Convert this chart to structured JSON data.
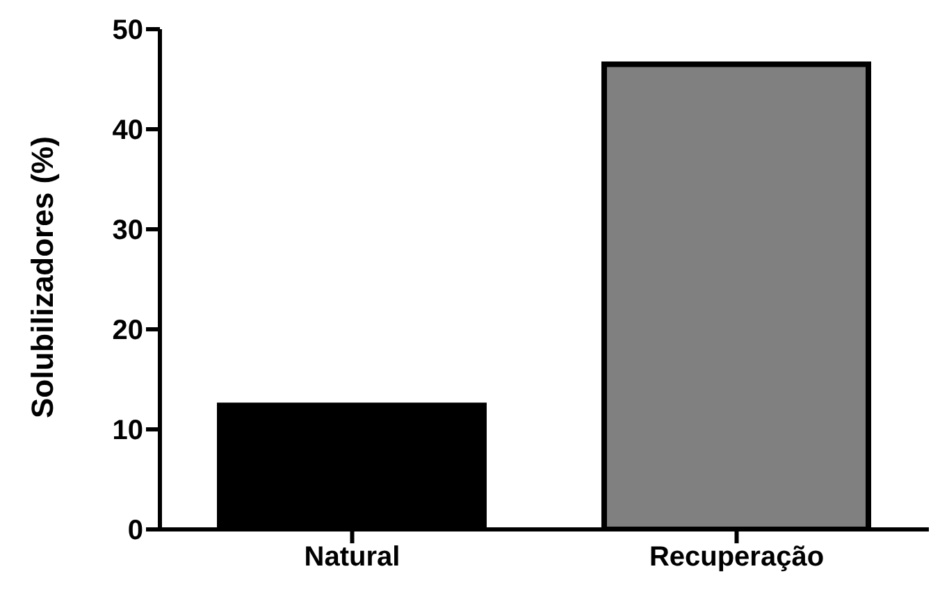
{
  "chart_data": {
    "type": "bar",
    "ylabel": "Solubilizadores (%)",
    "categories": [
      "Natural",
      "Recuperação"
    ],
    "values": [
      12.4,
      46.5
    ],
    "colors": [
      "#000000",
      "#808080"
    ],
    "ylim": [
      0,
      50
    ],
    "yticks": [
      0,
      10,
      20,
      30,
      40,
      50
    ],
    "grid": false
  }
}
